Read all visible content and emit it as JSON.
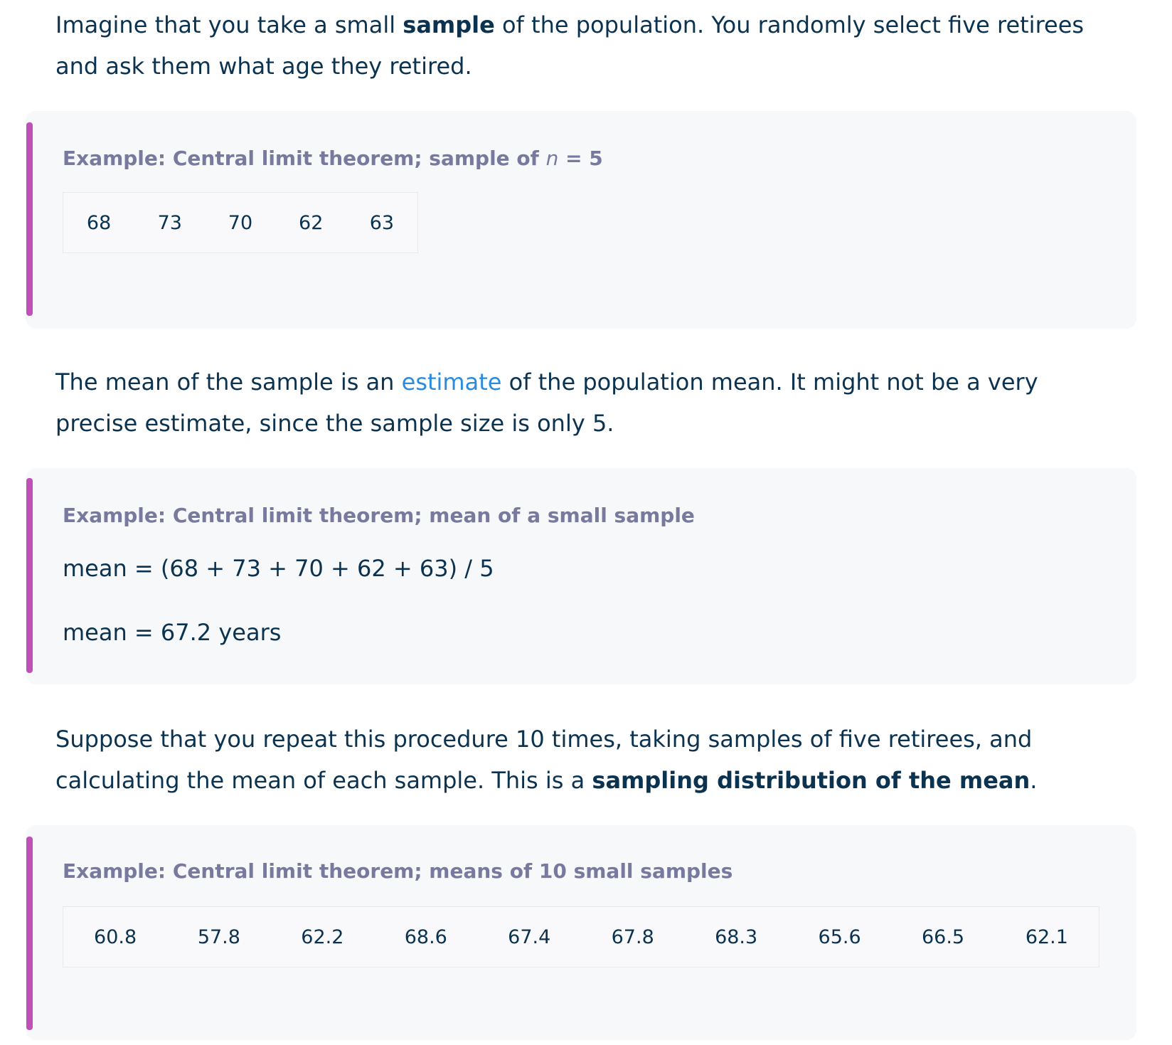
{
  "intro": {
    "p1_before": "Imagine that you take a small ",
    "p1_bold": "sample",
    "p1_after": " of the population. You randomly select five retirees and ask them what age they retired."
  },
  "example1": {
    "title_prefix": "Example: Central limit theorem; sample of ",
    "title_var": "n",
    "title_suffix": " = 5",
    "values": [
      "68",
      "73",
      "70",
      "62",
      "63"
    ]
  },
  "para2": {
    "before": "The mean of the sample is an ",
    "link": "estimate",
    "after": " of the population mean. It might not be a very precise estimate, since the sample size is only 5."
  },
  "example2": {
    "title": "Example: Central limit theorem; mean of a small sample",
    "line1": "mean = (68 + 73 + 70 + 62 + 63) / 5",
    "line2": "mean = 67.2 years"
  },
  "para3": {
    "before": "Suppose that you repeat this procedure 10 times, taking samples of five retirees, and calculating the mean of each sample. This is a ",
    "bold": "sampling distribution of the mean",
    "after": "."
  },
  "example3": {
    "title": "Example: Central limit theorem; means of 10 small samples",
    "values": [
      "60.8",
      "57.8",
      "62.2",
      "68.6",
      "67.4",
      "67.8",
      "68.3",
      "65.6",
      "66.5",
      "62.1"
    ]
  },
  "colors": {
    "text": "#0b3350",
    "accent_bar": "#c050b8",
    "example_title": "#77799f",
    "link": "#2b8bdc",
    "example_bg": "#f7f8fa"
  }
}
